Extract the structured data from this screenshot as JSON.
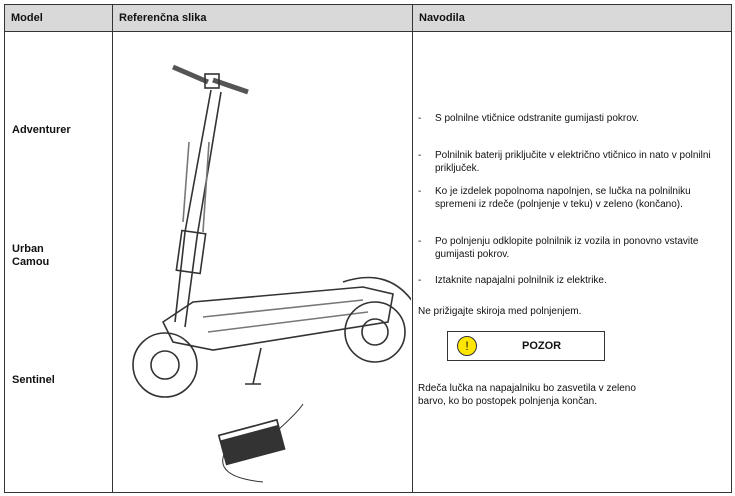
{
  "table": {
    "headers": [
      "Model",
      "Referenčna slika",
      "Navodila"
    ],
    "models": [
      "Adventurer",
      "Urban\nCamou",
      "Sentinel"
    ]
  },
  "instructions": {
    "steps": [
      "S polnilne vtičnice odstranite gumijasti pokrov.",
      "Polnilnik baterij priključite v električno vtičnico in nato v polnilni priključek.",
      "Ko je izdelek popolnoma napolnjen, se lučka na polnilniku spremeni iz rdeče (polnjenje v teku) v zeleno (končano).",
      "Po polnjenju odklopite polnilnik iz vozila in ponovno vstavite gumijasti pokrov.",
      "Iztaknite napajalni polnilnik iz elektrike."
    ],
    "bullet": "-",
    "note": "Ne prižigajte skiroja med polnjenjem.",
    "warning": {
      "icon": "!",
      "label": "POZOR"
    },
    "warning_text": "Rdeča lučka na napajalniku bo zasvetila v zeleno barvo, ko bo postopek polnjenja končan."
  }
}
